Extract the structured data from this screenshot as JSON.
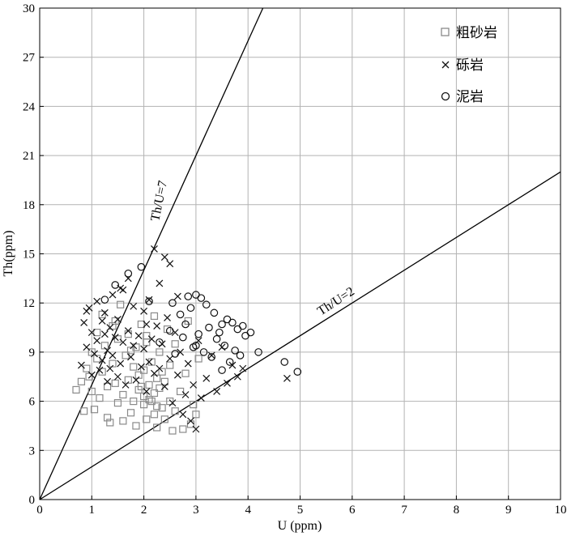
{
  "chart_data": {
    "type": "scatter",
    "xlabel": "U (ppm)",
    "ylabel": "Th(ppm)",
    "xlim": [
      0,
      10
    ],
    "ylim": [
      0,
      30
    ],
    "x_ticks": [
      0,
      1,
      2,
      3,
      4,
      5,
      6,
      7,
      8,
      9,
      10
    ],
    "y_ticks": [
      0,
      3,
      6,
      9,
      12,
      15,
      18,
      21,
      24,
      27,
      30
    ],
    "grid": true,
    "legend_position": "top-right",
    "reference_lines": [
      {
        "label": "Th/U=7",
        "slope": 7
      },
      {
        "label": "Th/U=2",
        "slope": 2
      }
    ],
    "colors": {
      "coarse_sandstone": "#8a8a8a",
      "conglomerate": "#111111",
      "mudstone": "#111111",
      "grid": "#b3b3b3"
    },
    "series": [
      {
        "name": "粗砂岩",
        "marker": "square",
        "points": [
          [
            0.7,
            6.7
          ],
          [
            0.8,
            7.2
          ],
          [
            0.85,
            5.4
          ],
          [
            0.9,
            8.0
          ],
          [
            0.95,
            7.5
          ],
          [
            1.0,
            6.6
          ],
          [
            1.0,
            9.0
          ],
          [
            1.05,
            5.5
          ],
          [
            1.1,
            8.6
          ],
          [
            1.1,
            10.2
          ],
          [
            1.15,
            6.2
          ],
          [
            1.2,
            7.8
          ],
          [
            1.2,
            11.3
          ],
          [
            1.25,
            9.4
          ],
          [
            1.3,
            5.0
          ],
          [
            1.3,
            6.9
          ],
          [
            1.35,
            4.7
          ],
          [
            1.4,
            8.3
          ],
          [
            1.4,
            10.6
          ],
          [
            1.45,
            7.1
          ],
          [
            1.5,
            5.9
          ],
          [
            1.5,
            9.8
          ],
          [
            1.55,
            11.9
          ],
          [
            1.6,
            4.8
          ],
          [
            1.6,
            6.4
          ],
          [
            1.65,
            8.8
          ],
          [
            1.7,
            7.3
          ],
          [
            1.7,
            10.1
          ],
          [
            1.75,
            5.3
          ],
          [
            1.8,
            6.0
          ],
          [
            1.8,
            8.1
          ],
          [
            1.85,
            4.5
          ],
          [
            1.85,
            9.3
          ],
          [
            1.9,
            6.7
          ],
          [
            1.9,
            7.6
          ],
          [
            1.95,
            10.7
          ],
          [
            2.0,
            5.8
          ],
          [
            2.0,
            6.3
          ],
          [
            2.0,
            7.9
          ],
          [
            2.05,
            4.9
          ],
          [
            2.05,
            9.6
          ],
          [
            2.1,
            6.1
          ],
          [
            2.1,
            7.0
          ],
          [
            2.15,
            8.4
          ],
          [
            2.2,
            5.2
          ],
          [
            2.2,
            6.5
          ],
          [
            2.2,
            11.2
          ],
          [
            2.25,
            4.4
          ],
          [
            2.25,
            7.4
          ],
          [
            2.3,
            6.8
          ],
          [
            2.3,
            9.0
          ],
          [
            2.35,
            5.6
          ],
          [
            2.4,
            4.9
          ],
          [
            2.4,
            7.2
          ],
          [
            2.45,
            10.4
          ],
          [
            2.5,
            6.0
          ],
          [
            2.5,
            8.2
          ],
          [
            2.55,
            4.2
          ],
          [
            2.6,
            5.4
          ],
          [
            2.6,
            9.5
          ],
          [
            2.7,
            6.6
          ],
          [
            2.75,
            4.3
          ],
          [
            2.8,
            7.7
          ],
          [
            2.85,
            10.9
          ],
          [
            2.9,
            4.6
          ],
          [
            2.95,
            5.8
          ],
          [
            3.0,
            5.2
          ],
          [
            3.05,
            8.6
          ],
          [
            1.95,
            6.9
          ],
          [
            2.15,
            6.0
          ],
          [
            2.35,
            7.8
          ],
          [
            1.75,
            9.1
          ],
          [
            2.05,
            10.0
          ],
          [
            1.45,
            10.9
          ],
          [
            2.25,
            5.7
          ]
        ]
      },
      {
        "name": "砾岩",
        "marker": "x",
        "points": [
          [
            0.8,
            8.2
          ],
          [
            0.85,
            10.8
          ],
          [
            0.9,
            9.3
          ],
          [
            0.95,
            11.7
          ],
          [
            1.0,
            7.6
          ],
          [
            1.0,
            10.2
          ],
          [
            1.05,
            8.9
          ],
          [
            1.1,
            12.1
          ],
          [
            1.1,
            9.7
          ],
          [
            1.15,
            7.9
          ],
          [
            1.2,
            10.9
          ],
          [
            1.2,
            8.5
          ],
          [
            1.25,
            11.4
          ],
          [
            1.3,
            9.1
          ],
          [
            1.3,
            7.2
          ],
          [
            1.35,
            10.5
          ],
          [
            1.4,
            8.8
          ],
          [
            1.4,
            12.5
          ],
          [
            1.45,
            9.9
          ],
          [
            1.5,
            7.5
          ],
          [
            1.5,
            11.0
          ],
          [
            1.55,
            8.3
          ],
          [
            1.6,
            9.6
          ],
          [
            1.6,
            12.8
          ],
          [
            1.65,
            7.0
          ],
          [
            1.7,
            10.3
          ],
          [
            1.7,
            13.5
          ],
          [
            1.75,
            8.7
          ],
          [
            1.8,
            9.4
          ],
          [
            1.8,
            11.8
          ],
          [
            1.85,
            7.3
          ],
          [
            1.9,
            10.0
          ],
          [
            1.95,
            8.1
          ],
          [
            2.0,
            9.2
          ],
          [
            2.0,
            11.5
          ],
          [
            2.05,
            6.6
          ],
          [
            2.1,
            8.4
          ],
          [
            2.1,
            12.2
          ],
          [
            2.15,
            9.8
          ],
          [
            2.2,
            7.7
          ],
          [
            2.2,
            15.3
          ],
          [
            2.25,
            10.6
          ],
          [
            2.3,
            8.0
          ],
          [
            2.3,
            13.2
          ],
          [
            2.35,
            9.5
          ],
          [
            2.4,
            14.8
          ],
          [
            2.4,
            6.9
          ],
          [
            2.45,
            11.1
          ],
          [
            2.5,
            8.6
          ],
          [
            2.5,
            14.4
          ],
          [
            2.55,
            5.9
          ],
          [
            2.6,
            10.2
          ],
          [
            2.65,
            7.6
          ],
          [
            2.7,
            9.0
          ],
          [
            2.75,
            5.2
          ],
          [
            2.8,
            6.4
          ],
          [
            2.85,
            8.3
          ],
          [
            2.9,
            4.8
          ],
          [
            2.95,
            7.0
          ],
          [
            3.0,
            4.3
          ],
          [
            3.05,
            9.7
          ],
          [
            3.1,
            6.2
          ],
          [
            3.2,
            7.4
          ],
          [
            3.3,
            8.8
          ],
          [
            3.4,
            6.6
          ],
          [
            3.5,
            9.3
          ],
          [
            3.6,
            7.1
          ],
          [
            3.7,
            8.2
          ],
          [
            3.8,
            7.5
          ],
          [
            3.9,
            8.0
          ],
          [
            4.75,
            7.4
          ],
          [
            0.9,
            11.5
          ],
          [
            1.25,
            10.1
          ],
          [
            1.55,
            12.9
          ],
          [
            2.05,
            10.7
          ],
          [
            2.65,
            12.4
          ],
          [
            1.35,
            8.0
          ]
        ]
      },
      {
        "name": "泥岩",
        "marker": "circle",
        "points": [
          [
            1.25,
            12.2
          ],
          [
            1.45,
            13.1
          ],
          [
            1.7,
            13.8
          ],
          [
            1.95,
            14.2
          ],
          [
            2.1,
            12.1
          ],
          [
            2.3,
            9.6
          ],
          [
            2.5,
            10.3
          ],
          [
            2.55,
            12.0
          ],
          [
            2.6,
            8.9
          ],
          [
            2.7,
            11.3
          ],
          [
            2.75,
            9.9
          ],
          [
            2.8,
            10.7
          ],
          [
            2.9,
            11.7
          ],
          [
            2.95,
            9.3
          ],
          [
            3.0,
            12.5
          ],
          [
            3.05,
            10.1
          ],
          [
            3.1,
            12.3
          ],
          [
            3.15,
            9.0
          ],
          [
            3.2,
            11.9
          ],
          [
            3.25,
            10.5
          ],
          [
            3.3,
            8.7
          ],
          [
            3.35,
            11.4
          ],
          [
            3.4,
            9.8
          ],
          [
            3.45,
            10.2
          ],
          [
            3.5,
            7.9
          ],
          [
            3.55,
            9.4
          ],
          [
            3.6,
            11.0
          ],
          [
            3.65,
            8.4
          ],
          [
            3.7,
            10.8
          ],
          [
            3.75,
            9.1
          ],
          [
            3.8,
            10.4
          ],
          [
            3.85,
            8.8
          ],
          [
            3.9,
            10.6
          ],
          [
            3.95,
            10.0
          ],
          [
            4.05,
            10.2
          ],
          [
            4.2,
            9.0
          ],
          [
            4.7,
            8.4
          ],
          [
            4.95,
            7.8
          ],
          [
            3.5,
            10.7
          ],
          [
            3.0,
            9.4
          ],
          [
            2.85,
            12.4
          ]
        ]
      }
    ]
  }
}
